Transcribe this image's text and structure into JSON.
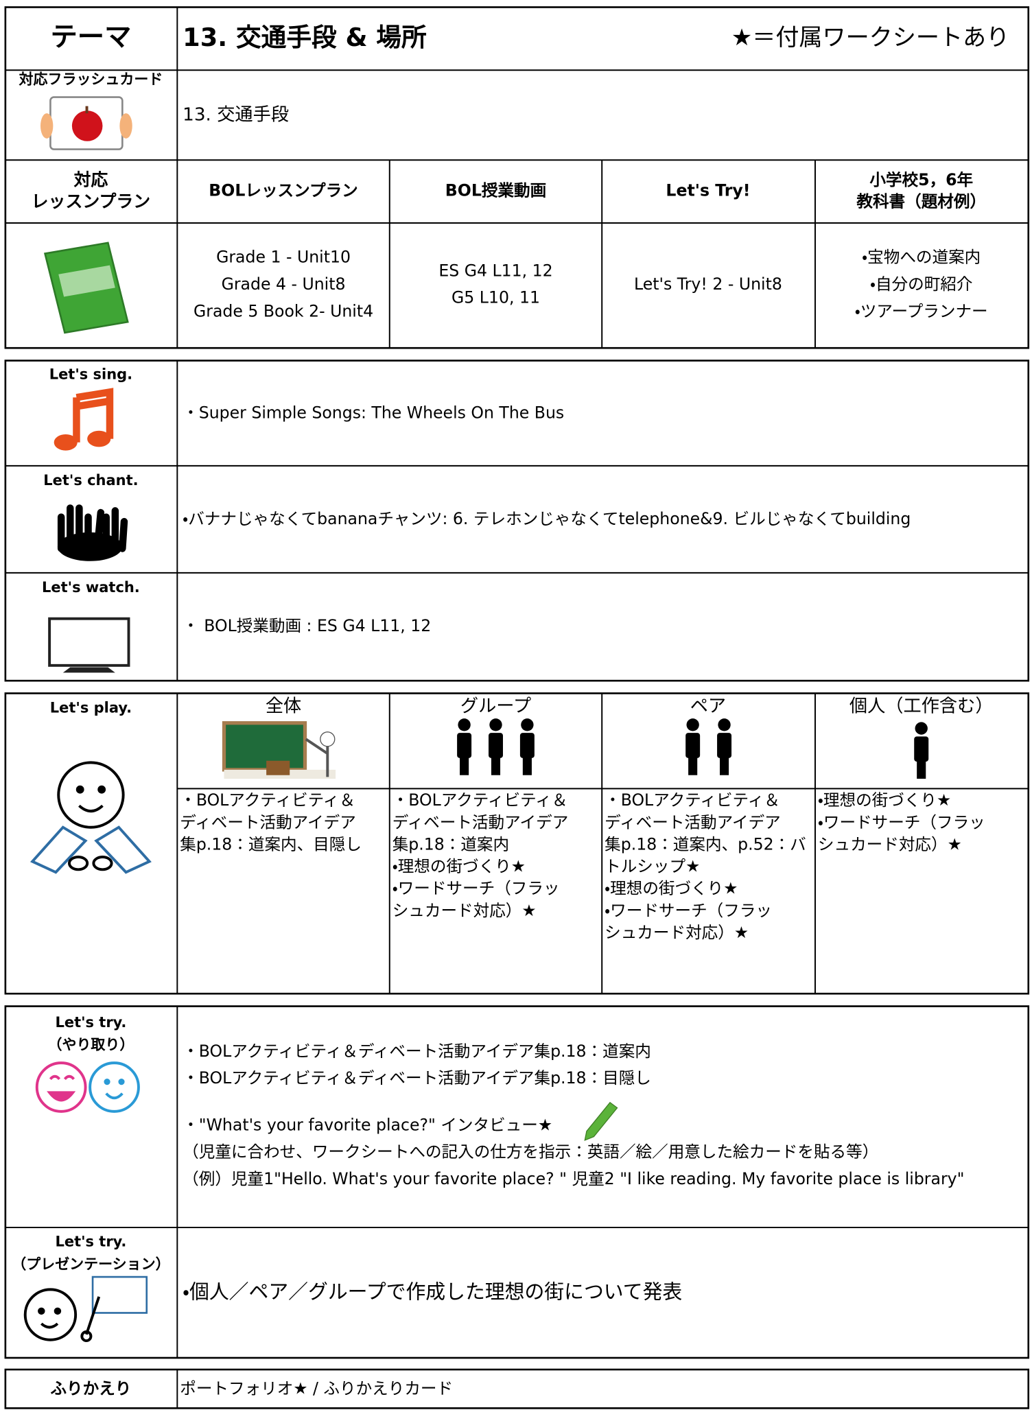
{
  "header": {
    "label": "テーマ",
    "title": "13. 交通手段 & 場所",
    "note": "★＝付属ワークシートあり"
  },
  "flashcard": {
    "label": "対応フラッシュカード",
    "value": "13. 交通手段"
  },
  "lesson_plan": {
    "label": [
      "対応",
      "レッスンプラン"
    ],
    "columns": [
      {
        "title": [
          "BOLレッスンプラン"
        ],
        "lines": [
          "Grade 1 - Unit10",
          "Grade 4 - Unit8",
          "Grade 5 Book 2- Unit4"
        ]
      },
      {
        "title": [
          "BOL授業動画"
        ],
        "lines": [
          "ES G4 L11, 12",
          "G5 L10, 11"
        ]
      },
      {
        "title": [
          "Let's Try!"
        ],
        "lines": [
          "Let's Try! 2 - Unit8"
        ]
      },
      {
        "title": [
          "小学校5，6年",
          "教科書（題材例）"
        ],
        "lines": [
          "・宝物への道案内",
          "・自分の町紹介",
          "・ツアープランナー"
        ]
      }
    ]
  },
  "activities": [
    {
      "label": "Let's sing.",
      "text": "・Super Simple Songs: The Wheels On The Bus"
    },
    {
      "label": "Let's chant.",
      "text": "・バナナじゃなくてbananaチャンツ: 6. テレホンじゃなくてtelephone&9. ビルじゃなくてbuilding"
    },
    {
      "label": "Let's watch.",
      "text": "・ BOL授業動画 : ES G4 L11, 12"
    }
  ],
  "play": {
    "label": "Let's play.",
    "columns": [
      {
        "title": "全体",
        "lines": [
          "・BOLアクティビティ＆",
          "ディベート活動アイデア",
          "集p.18：道案内、目隠し"
        ]
      },
      {
        "title": "グループ",
        "lines": [
          "・BOLアクティビティ＆",
          "ディベート活動アイデア",
          "集p.18：道案内",
          "・理想の街づくり★",
          "・ワードサーチ（フラッ",
          "シュカード対応）★"
        ]
      },
      {
        "title": "ペア",
        "lines": [
          "・BOLアクティビティ＆",
          "ディベート活動アイデア",
          "集p.18：道案内、p.52：バ",
          "トルシップ★",
          "・理想の街づくり★",
          "・ワードサーチ（フラッ",
          "シュカード対応）★"
        ]
      },
      {
        "title": "個人（工作含む）",
        "lines": [
          "・理想の街づくり★",
          "・ワードサーチ（フラッ",
          "シュカード対応）★"
        ]
      }
    ]
  },
  "try": [
    {
      "label": [
        "Let's try.",
        "（やり取り）"
      ],
      "lines": [
        "・BOLアクティビティ＆ディベート活動アイデア集p.18：道案内",
        "・BOLアクティビティ＆ディベート活動アイデア集p.18：目隠し"
      ],
      "detail_lines": [
        "・\"What's your favorite place?\" インタビュー★",
        "（児童に合わせ、ワークシートへの記入の仕方を指示：英語／絵／用意した絵カードを貼る等）",
        "（例）児童1\"Hello. What's your favorite place? \" 児童2  \"I like reading.  My favorite place is library\""
      ]
    },
    {
      "label": [
        "Let's try.",
        "（プレゼンテーション）"
      ],
      "lines": [
        "・個人／ペア／グループで作成した理想の街について発表"
      ]
    }
  ],
  "reflection": {
    "label": "ふりかえり",
    "text": "ポートフォリオ★ / ふりかえりカード"
  }
}
